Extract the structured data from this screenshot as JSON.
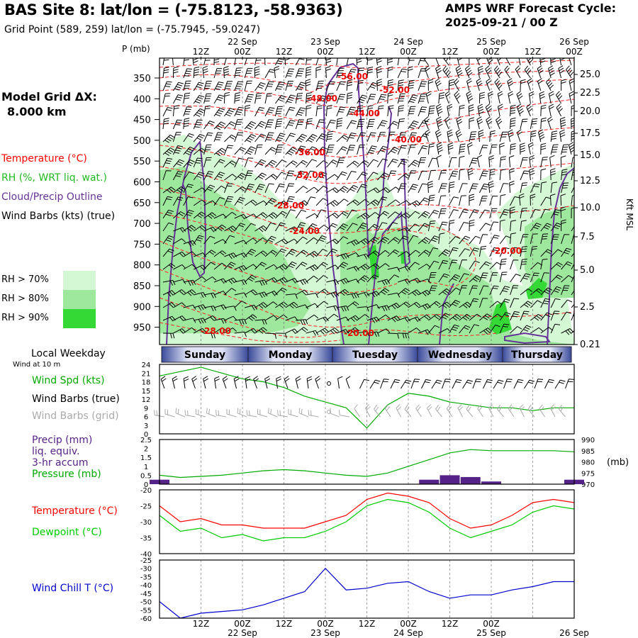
{
  "header": {
    "title": "BAS Site 8:  lat/lon = (-75.8123, -58.9363)",
    "subtitle": "Grid Point (589, 259) lat/lon = (-75.7945, -59.0247)",
    "cycle_line1": "AMPS WRF Forecast Cycle:",
    "cycle_line2": "2025-09-21 / 00  Z"
  },
  "grid_label": {
    "line1": "Model Grid ΔX:",
    "line2": "8.000 km"
  },
  "legend": {
    "temperature": "Temperature (°C)",
    "rh": "RH (%, WRT liq. wat.)",
    "cloud": "Cloud/Precip Outline",
    "wind": "Wind Barbs (kts) (true)",
    "rh_levels": [
      {
        "label": "RH > 70%",
        "color": "#d4f7d4"
      },
      {
        "label": "RH > 80%",
        "color": "#9ee89e"
      },
      {
        "label": "RH > 90%",
        "color": "#35d935"
      }
    ]
  },
  "colors": {
    "temperature": "#ff0000",
    "rh": "#22bb22",
    "cloud": "#663399",
    "dewpoint": "#00cc00",
    "windchill": "#0000cc",
    "precip": "#552288",
    "pressure": "#00aa00",
    "wind_grid": "#aaaaaa"
  },
  "time_axis": {
    "top_labels": [
      "12Z",
      "00Z",
      "12Z",
      "00Z",
      "12Z",
      "00Z",
      "12Z",
      "00Z",
      "12Z",
      "00Z"
    ],
    "top_dates": [
      "22 Sep",
      "23 Sep",
      "24 Sep",
      "25 Sep",
      "26 Sep"
    ],
    "bottom_labels": [
      "12Z",
      "00Z",
      "12Z",
      "00Z",
      "12Z",
      "00Z",
      "12Z",
      "00Z"
    ],
    "bottom_dates": [
      "22 Sep",
      "23 Sep",
      "24 Sep",
      "25 Sep",
      "26 Sep"
    ]
  },
  "cross_section": {
    "ylabel": "P (mb)",
    "right_label": "Kft MSL",
    "pressure_ticks": [
      "350",
      "400",
      "450",
      "500",
      "550",
      "600",
      "650",
      "700",
      "750",
      "800",
      "850",
      "900",
      "950"
    ],
    "height_ticks": [
      "25.0",
      "22.5",
      "20.0",
      "17.5",
      "15.0",
      "12.5",
      "10.0",
      "7.5",
      "5.0",
      "2.5",
      "0.21"
    ],
    "temp_labels": [
      "-56.00",
      "-52.00",
      "-48.00",
      "-44.00",
      "-40.00",
      "-36.00",
      "-32.00",
      "-28.00",
      "-24.00",
      "-20.00",
      "-28.00",
      "-20.00"
    ]
  },
  "weekday_bar": {
    "title": "Local Weekday",
    "days": [
      "Sunday",
      "Monday",
      "Tuesday",
      "Wednesday",
      "Thursday"
    ]
  },
  "panel_wind": {
    "subtitle": "Wind at 10 m",
    "labels": [
      "Wind Spd (kts)",
      "Wind Barbs (true)",
      "Wind Barbs (grid)"
    ],
    "yticks": [
      "24",
      "21",
      "18",
      "15",
      "12",
      "9",
      "6",
      "3",
      "0"
    ]
  },
  "panel_precip": {
    "labels": [
      "Precip (mm)",
      "liq. equiv.",
      "3-hr accum",
      "Pressure (mb)"
    ],
    "left_ticks": [
      "2.5",
      "2",
      "1.5",
      "1",
      "0.5",
      "0"
    ],
    "right_ticks": [
      "990",
      "985",
      "980",
      "975",
      "970"
    ],
    "right_unit": "(mb)"
  },
  "panel_temp": {
    "labels": [
      "Temperature (°C)",
      "Dewpoint (°C)"
    ],
    "yticks": [
      "-20",
      "-25",
      "-30",
      "-35",
      "-40"
    ]
  },
  "panel_windchill": {
    "labels": [
      "Wind Chill T (°C)"
    ],
    "yticks": [
      "-25",
      "-30",
      "-35",
      "-40",
      "-45",
      "-50",
      "-55",
      "-60"
    ]
  },
  "chart_data": {
    "type": "line",
    "x_hours": [
      0,
      6,
      12,
      18,
      24,
      30,
      36,
      42,
      48,
      54,
      60,
      66,
      72,
      78,
      84,
      90,
      96,
      102,
      108,
      114,
      120
    ],
    "wind_speed": {
      "name": "Wind Spd (kts)",
      "ylim": [
        0,
        24
      ],
      "values": [
        20,
        21.5,
        23,
        21,
        19,
        18,
        16,
        13,
        11,
        9,
        2,
        10,
        14,
        13,
        11,
        10,
        9,
        9,
        8,
        9,
        9
      ]
    },
    "precip": {
      "name": "Precip (mm)",
      "ylim": [
        0,
        2.5
      ],
      "values": [
        0.25,
        0,
        0,
        0,
        0,
        0,
        0,
        0,
        0,
        0,
        0,
        0,
        0,
        0.25,
        0.5,
        0.4,
        0.15,
        0,
        0,
        0,
        0.25
      ]
    },
    "pressure": {
      "name": "Pressure (mb)",
      "ylim": [
        970,
        990
      ],
      "values": [
        974,
        973,
        973.5,
        974,
        975,
        976,
        976.5,
        976,
        975,
        974,
        973.5,
        975,
        978,
        981,
        984,
        985.5,
        985,
        985,
        985,
        985,
        984.5
      ]
    },
    "temperature": {
      "name": "Temperature (°C)",
      "ylim": [
        -40,
        -20
      ],
      "values": [
        -25,
        -30,
        -29,
        -31,
        -31,
        -32,
        -32,
        -32,
        -30,
        -28,
        -23,
        -21,
        -22,
        -24,
        -29,
        -32,
        -31,
        -28,
        -24,
        -23,
        -24
      ]
    },
    "dewpoint": {
      "name": "Dewpoint (°C)",
      "ylim": [
        -40,
        -20
      ],
      "values": [
        -28,
        -33,
        -32,
        -35,
        -34,
        -36,
        -35,
        -35,
        -33,
        -30,
        -25,
        -23,
        -24,
        -27,
        -32,
        -35,
        -33,
        -31,
        -27,
        -25,
        -26
      ]
    },
    "wind_chill": {
      "name": "Wind Chill T (°C)",
      "ylim": [
        -60,
        -25
      ],
      "values": [
        -50,
        -60,
        -57,
        -56,
        -55,
        -52,
        -48,
        -44,
        -30,
        -43,
        -42,
        -39,
        -38,
        -44,
        -48,
        -46,
        -46,
        -43,
        -41,
        -38,
        -38
      ]
    }
  }
}
